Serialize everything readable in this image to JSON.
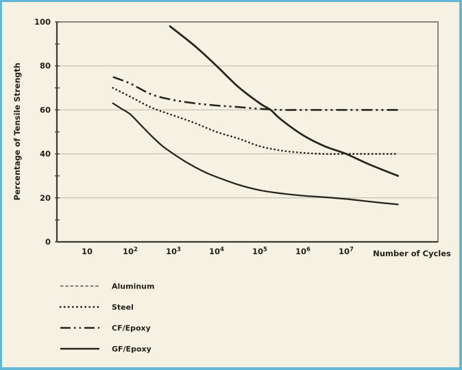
{
  "figure": {
    "kind": "fatigue-strength-comparison-figure",
    "background_color": "#f6f2e3",
    "border_color": "#62b7d5"
  },
  "colors": {
    "curve": "#26251f",
    "grid": "#b9b5a7",
    "frame": "#5a574e",
    "axis": "#3a382f",
    "text": "#21201b",
    "aluminum_legend": "#55524b"
  },
  "chart_data": {
    "type": "line",
    "title": "",
    "xlabel": "Number of Cycles",
    "ylabel": "Percentage of Tensile Strength",
    "x_scale": "log10",
    "x_axis_range_log10": [
      0.3,
      9.1
    ],
    "ylim": [
      0,
      100
    ],
    "grid": "horizontal-only",
    "gridline_values": [
      20,
      40,
      60,
      80
    ],
    "legend_position": "below-left",
    "x_ticks": [
      {
        "base": "10",
        "exp": "",
        "log10": 1
      },
      {
        "base": "10",
        "exp": "2",
        "log10": 2
      },
      {
        "base": "10",
        "exp": "3",
        "log10": 3
      },
      {
        "base": "10",
        "exp": "4",
        "log10": 4
      },
      {
        "base": "10",
        "exp": "5",
        "log10": 5
      },
      {
        "base": "10",
        "exp": "6",
        "log10": 6
      },
      {
        "base": "10",
        "exp": "7",
        "log10": 7
      }
    ],
    "y_ticks": [
      {
        "value": 0,
        "label": "0"
      },
      {
        "value": 20,
        "label": "20"
      },
      {
        "value": 40,
        "label": "40"
      },
      {
        "value": 60,
        "label": "60"
      },
      {
        "value": 80,
        "label": "80"
      },
      {
        "value": 100,
        "label": "100"
      }
    ],
    "y_minor_ticks": [
      10,
      30,
      50,
      70,
      90
    ],
    "series": [
      {
        "name": "Aluminum",
        "legend_style": {
          "dash": "4.5 2.8",
          "width": 1.5,
          "color": "#55524b",
          "cap": "butt"
        },
        "chart_style": {
          "dash": "",
          "width": 2.3,
          "cap": "round"
        },
        "points_log10_percent": [
          [
            1.6,
            63
          ],
          [
            1.8,
            60.5
          ],
          [
            2.0,
            58
          ],
          [
            2.25,
            53
          ],
          [
            2.5,
            48
          ],
          [
            2.75,
            43.5
          ],
          [
            3.0,
            40
          ],
          [
            3.25,
            36.8
          ],
          [
            3.5,
            34
          ],
          [
            3.75,
            31.5
          ],
          [
            4.0,
            29.5
          ],
          [
            4.5,
            26
          ],
          [
            5.0,
            23.5
          ],
          [
            5.5,
            22
          ],
          [
            6.0,
            21
          ],
          [
            6.5,
            20.3
          ],
          [
            7.0,
            19.5
          ],
          [
            7.5,
            18.4
          ],
          [
            8.2,
            17
          ]
        ]
      },
      {
        "name": "Steel",
        "legend_style": {
          "dash": "0.1 6",
          "width": 2.8,
          "color": "#26251f",
          "cap": "round"
        },
        "chart_style": {
          "dash": "0.1 5.4",
          "width": 2.7,
          "cap": "round"
        },
        "points_log10_percent": [
          [
            1.6,
            70
          ],
          [
            2.0,
            66
          ],
          [
            2.5,
            61
          ],
          [
            3.0,
            57.5
          ],
          [
            3.5,
            54
          ],
          [
            4.0,
            50
          ],
          [
            4.5,
            47
          ],
          [
            5.0,
            43.5
          ],
          [
            5.5,
            41.5
          ],
          [
            6.0,
            40.5
          ],
          [
            6.5,
            40
          ],
          [
            7.0,
            40
          ],
          [
            7.5,
            40
          ],
          [
            8.2,
            40
          ]
        ]
      },
      {
        "name": "CF/Epoxy",
        "legend_style": {
          "dash": "15 5 2.5 5 2.5 5",
          "width": 2.6,
          "color": "#26251f",
          "cap": "butt"
        },
        "chart_style": {
          "dash": "16 5 3 5 3 5",
          "width": 2.6,
          "cap": "butt"
        },
        "points_log10_percent": [
          [
            1.6,
            75
          ],
          [
            2.0,
            72
          ],
          [
            2.5,
            67
          ],
          [
            3.0,
            64.5
          ],
          [
            3.5,
            63
          ],
          [
            4.0,
            62
          ],
          [
            4.5,
            61.3
          ],
          [
            5.0,
            60.5
          ],
          [
            5.5,
            60
          ],
          [
            6.0,
            60
          ],
          [
            6.5,
            60
          ],
          [
            7.0,
            60
          ],
          [
            7.5,
            60
          ],
          [
            8.2,
            60
          ]
        ]
      },
      {
        "name": "GF/Epoxy",
        "legend_style": {
          "dash": "",
          "width": 2.5,
          "color": "#26251f",
          "cap": "butt"
        },
        "chart_style": {
          "dash": "",
          "width": 2.8,
          "cap": "round"
        },
        "points_log10_percent": [
          [
            2.92,
            98
          ],
          [
            3.5,
            89
          ],
          [
            4.0,
            80
          ],
          [
            4.5,
            70.5
          ],
          [
            5.0,
            63
          ],
          [
            5.25,
            60
          ],
          [
            5.5,
            55.5
          ],
          [
            6.0,
            48.5
          ],
          [
            6.5,
            43.5
          ],
          [
            7.0,
            40
          ],
          [
            7.5,
            35.5
          ],
          [
            8.2,
            30
          ]
        ]
      }
    ]
  }
}
